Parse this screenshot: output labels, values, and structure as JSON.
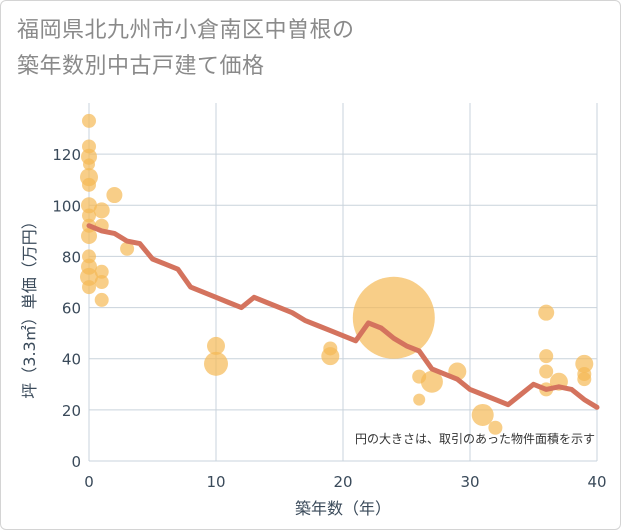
{
  "title_lines": [
    "福岡県北九州市小倉南区中曽根の",
    "築年数別中古戸建て価格"
  ],
  "colors": {
    "bubble": "#f5b955",
    "line": "#d4735e",
    "grid": "#c9d3dc",
    "axis_text": "#3a4a5a"
  },
  "chart_data": {
    "type": "scatter",
    "title": "福岡県北九州市小倉南区中曽根の築年数別中古戸建て価格",
    "xlabel": "築年数（年）",
    "ylabel": "坪（3.3㎡）単価（万円）",
    "xlim": [
      0,
      40
    ],
    "ylim": [
      0,
      140
    ],
    "xticks": [
      0,
      10,
      20,
      30,
      40
    ],
    "yticks": [
      0,
      20,
      40,
      60,
      80,
      100,
      120
    ],
    "annotation": "円の大きさは、取引のあった物件面積を示す",
    "bubbles": [
      {
        "x": 0,
        "y": 133,
        "r": 7
      },
      {
        "x": 0,
        "y": 123,
        "r": 7
      },
      {
        "x": 0,
        "y": 119,
        "r": 8
      },
      {
        "x": 0,
        "y": 116,
        "r": 6
      },
      {
        "x": 0,
        "y": 111,
        "r": 9
      },
      {
        "x": 0,
        "y": 108,
        "r": 7
      },
      {
        "x": 0,
        "y": 100,
        "r": 8
      },
      {
        "x": 0,
        "y": 96,
        "r": 7
      },
      {
        "x": 0,
        "y": 92,
        "r": 7
      },
      {
        "x": 0,
        "y": 88,
        "r": 8
      },
      {
        "x": 0,
        "y": 80,
        "r": 7
      },
      {
        "x": 0,
        "y": 76,
        "r": 8
      },
      {
        "x": 0,
        "y": 72,
        "r": 9
      },
      {
        "x": 0,
        "y": 68,
        "r": 7
      },
      {
        "x": 1,
        "y": 98,
        "r": 8
      },
      {
        "x": 1,
        "y": 92,
        "r": 7
      },
      {
        "x": 1,
        "y": 74,
        "r": 7
      },
      {
        "x": 1,
        "y": 70,
        "r": 7
      },
      {
        "x": 1,
        "y": 63,
        "r": 7
      },
      {
        "x": 2,
        "y": 104,
        "r": 8
      },
      {
        "x": 3,
        "y": 83,
        "r": 7
      },
      {
        "x": 10,
        "y": 45,
        "r": 9
      },
      {
        "x": 10,
        "y": 38,
        "r": 12
      },
      {
        "x": 19,
        "y": 44,
        "r": 7
      },
      {
        "x": 19,
        "y": 41,
        "r": 9
      },
      {
        "x": 24,
        "y": 56,
        "r": 41
      },
      {
        "x": 26,
        "y": 33,
        "r": 7
      },
      {
        "x": 26,
        "y": 24,
        "r": 6
      },
      {
        "x": 27,
        "y": 31,
        "r": 11
      },
      {
        "x": 29,
        "y": 35,
        "r": 9
      },
      {
        "x": 31,
        "y": 18,
        "r": 11
      },
      {
        "x": 32,
        "y": 13,
        "r": 7
      },
      {
        "x": 36,
        "y": 58,
        "r": 8
      },
      {
        "x": 36,
        "y": 41,
        "r": 7
      },
      {
        "x": 36,
        "y": 35,
        "r": 7
      },
      {
        "x": 36,
        "y": 28,
        "r": 7
      },
      {
        "x": 37,
        "y": 31,
        "r": 9
      },
      {
        "x": 39,
        "y": 38,
        "r": 9
      },
      {
        "x": 39,
        "y": 34,
        "r": 7
      },
      {
        "x": 39,
        "y": 32,
        "r": 7
      }
    ],
    "trend": {
      "x": [
        0,
        1,
        2,
        3,
        4,
        5,
        6,
        7,
        8,
        9,
        10,
        11,
        12,
        13,
        14,
        15,
        16,
        17,
        18,
        19,
        20,
        21,
        22,
        23,
        24,
        25,
        26,
        27,
        28,
        29,
        30,
        31,
        32,
        33,
        34,
        35,
        36,
        37,
        38,
        39,
        40
      ],
      "y": [
        92,
        90,
        89,
        86,
        85,
        79,
        77,
        75,
        68,
        66,
        64,
        62,
        60,
        64,
        62,
        60,
        58,
        55,
        53,
        51,
        49,
        47,
        54,
        52,
        48,
        45,
        43,
        36,
        34,
        32,
        28,
        26,
        24,
        22,
        26,
        30,
        28,
        29,
        28,
        24,
        21
      ]
    }
  }
}
